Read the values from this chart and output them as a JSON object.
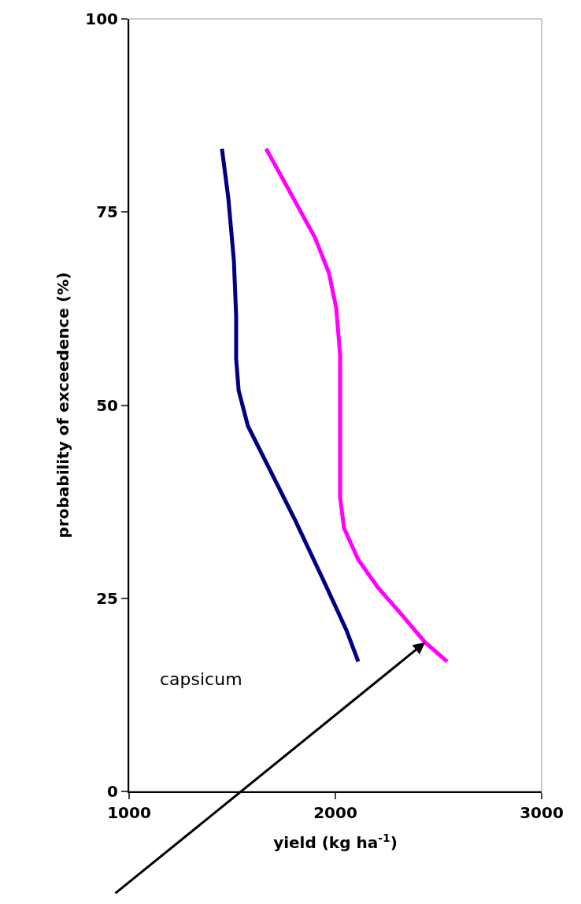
{
  "chart_data": {
    "type": "line",
    "xlabel": "yield (kg ha$^{-1}$)",
    "ylabel": "probability of exceedence (%)",
    "xlim": [
      1000,
      3000
    ],
    "xticks": [
      1000,
      2000,
      3000
    ],
    "ylim": [
      0,
      100
    ],
    "yticks": [
      0,
      25,
      50,
      75,
      100
    ],
    "grid": false,
    "legend": false,
    "line_style": "solid",
    "marker": "none",
    "annotations": [
      "capsicum"
    ],
    "series": [
      {
        "color": "#000080",
        "x": [
          1450,
          1481,
          1508,
          1519,
          1519,
          1531,
          1576,
          1672,
          1805,
          1939,
          2053,
          2111
        ],
        "values": [
          83.2,
          76.8,
          68.7,
          61.5,
          56,
          51.9,
          47.3,
          42.2,
          35.1,
          27.5,
          20.9,
          16.8
        ]
      },
      {
        "color": "#ff00ff",
        "x": [
          1664,
          1786,
          1901,
          1969,
          2004,
          2023,
          2023,
          2023,
          2042,
          2111,
          2206,
          2321,
          2435,
          2542
        ],
        "values": [
          83.2,
          77.3,
          71.7,
          67.1,
          62.6,
          56.5,
          49.3,
          38.1,
          34.1,
          30.0,
          26.4,
          22.9,
          19.3,
          16.8
        ]
      }
    ]
  }
}
